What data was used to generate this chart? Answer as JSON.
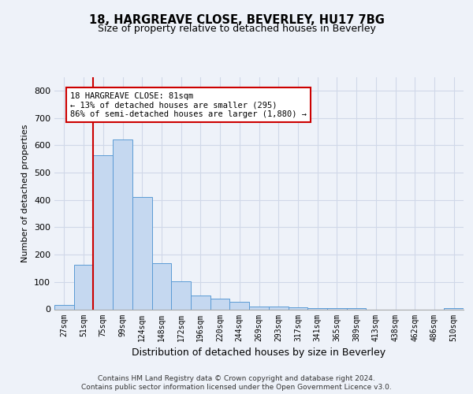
{
  "title_line1": "18, HARGREAVE CLOSE, BEVERLEY, HU17 7BG",
  "title_line2": "Size of property relative to detached houses in Beverley",
  "xlabel": "Distribution of detached houses by size in Beverley",
  "ylabel": "Number of detached properties",
  "categories": [
    "27sqm",
    "51sqm",
    "75sqm",
    "99sqm",
    "124sqm",
    "148sqm",
    "172sqm",
    "196sqm",
    "220sqm",
    "244sqm",
    "269sqm",
    "293sqm",
    "317sqm",
    "341sqm",
    "365sqm",
    "389sqm",
    "413sqm",
    "438sqm",
    "462sqm",
    "486sqm",
    "510sqm"
  ],
  "values": [
    15,
    163,
    563,
    620,
    410,
    170,
    103,
    50,
    38,
    28,
    10,
    10,
    7,
    3,
    3,
    5,
    0,
    0,
    0,
    0,
    5
  ],
  "bar_color": "#c5d8f0",
  "bar_edge_color": "#5b9bd5",
  "grid_color": "#d0d8e8",
  "annotation_box_text": "18 HARGREAVE CLOSE: 81sqm\n← 13% of detached houses are smaller (295)\n86% of semi-detached houses are larger (1,880) →",
  "annotation_box_color": "#ffffff",
  "annotation_box_edge_color": "#cc0000",
  "red_line_x": 1.5,
  "ylim": [
    0,
    850
  ],
  "yticks": [
    0,
    100,
    200,
    300,
    400,
    500,
    600,
    700,
    800
  ],
  "footer_line1": "Contains HM Land Registry data © Crown copyright and database right 2024.",
  "footer_line2": "Contains public sector information licensed under the Open Government Licence v3.0.",
  "bg_color": "#eef2f9"
}
